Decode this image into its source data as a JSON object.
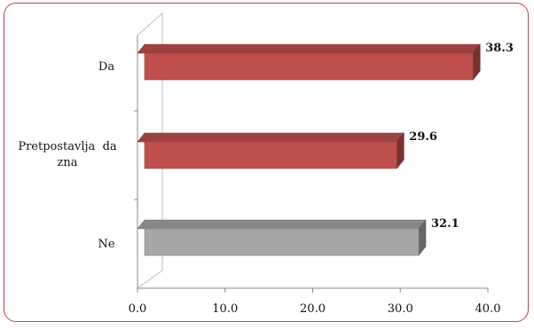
{
  "chart_data": {
    "type": "bar",
    "orientation": "horizontal",
    "style": "3d",
    "categories": [
      "Da",
      "Pretpostavlja  da zna",
      "Ne"
    ],
    "values": [
      38.3,
      29.6,
      32.1
    ],
    "value_labels": [
      "38.3",
      "29.6",
      "32.1"
    ],
    "bar_colors": [
      "#c0504d",
      "#c0504d",
      "#a6a6a6"
    ],
    "xlim": [
      0,
      40
    ],
    "x_ticks": [
      0,
      10,
      20,
      30,
      40
    ],
    "x_tick_labels": [
      "0.0",
      "10.0",
      "20.0",
      "30.0",
      "40.0"
    ],
    "grid": false,
    "legend": "none"
  },
  "colors": {
    "frame_border": "#b5474a",
    "red_bar": "#c0504d",
    "gray_bar": "#a6a6a6"
  }
}
